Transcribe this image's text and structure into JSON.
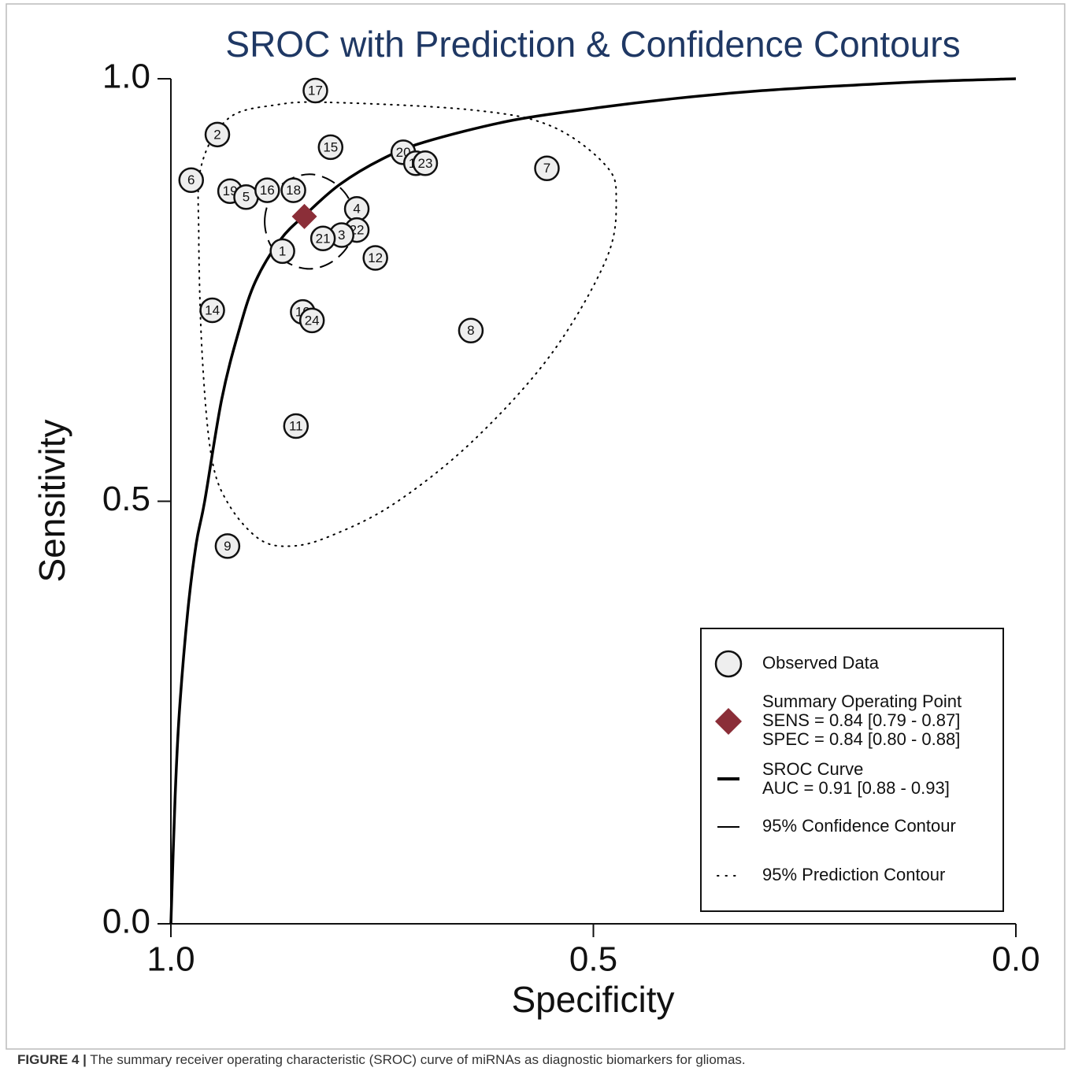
{
  "chart_data": {
    "type": "scatter",
    "title": "SROC with Prediction & Confidence Contours",
    "x_label": "Specificity",
    "y_label": "Sensitivity",
    "xlim": [
      1.0,
      0.0
    ],
    "ylim": [
      0.0,
      1.0
    ],
    "xticks": [
      {
        "value": 1.0,
        "label": "1.0"
      },
      {
        "value": 0.5,
        "label": "0.5"
      },
      {
        "value": 0.0,
        "label": "0.0"
      }
    ],
    "yticks": [
      {
        "value": 0.0,
        "label": "0.0"
      },
      {
        "value": 0.5,
        "label": "0.5"
      },
      {
        "value": 1.0,
        "label": "1.0"
      }
    ],
    "series": [
      {
        "name": "Observed Data",
        "kind": "points",
        "color": "#eeeeee",
        "labels": [
          "17",
          "2",
          "15",
          "20",
          "13",
          "23",
          "7",
          "6",
          "19",
          "5",
          "16",
          "18",
          "4",
          "22",
          "3",
          "21",
          "1",
          "12",
          "14",
          "10",
          "24",
          "8",
          "11",
          "9"
        ],
        "x": [
          0.829,
          0.945,
          0.811,
          0.725,
          0.71,
          0.699,
          0.555,
          0.976,
          0.93,
          0.911,
          0.886,
          0.855,
          0.78,
          0.78,
          0.798,
          0.82,
          0.868,
          0.758,
          0.951,
          0.844,
          0.833,
          0.645,
          0.852,
          0.933
        ],
        "y": [
          0.986,
          0.934,
          0.919,
          0.913,
          0.9,
          0.9,
          0.894,
          0.88,
          0.867,
          0.86,
          0.868,
          0.868,
          0.846,
          0.821,
          0.815,
          0.811,
          0.796,
          0.788,
          0.726,
          0.724,
          0.714,
          0.702,
          0.589,
          0.447
        ]
      },
      {
        "name": "Summary Operating Point",
        "stats": [
          "SENS = 0.84 [0.79 - 0.87]",
          "SPEC = 0.84 [0.80 - 0.88]"
        ],
        "kind": "diamond",
        "color": "#8b2e38",
        "x": [
          0.842
        ],
        "y": [
          0.837
        ]
      },
      {
        "name": "SROC Curve",
        "stats": [
          "AUC = 0.91 [0.88 - 0.93]"
        ],
        "kind": "curve",
        "color": "#000000",
        "x": [
          1.0,
          0.995,
          0.99,
          0.98,
          0.97,
          0.96,
          0.94,
          0.92,
          0.9,
          0.87,
          0.84,
          0.8,
          0.75,
          0.7,
          0.6,
          0.5,
          0.4,
          0.3,
          0.2,
          0.1,
          0.0
        ],
        "y": [
          0.0,
          0.15,
          0.25,
          0.37,
          0.45,
          0.5,
          0.62,
          0.7,
          0.76,
          0.81,
          0.84,
          0.875,
          0.905,
          0.925,
          0.95,
          0.965,
          0.977,
          0.986,
          0.992,
          0.997,
          1.0
        ]
      },
      {
        "name": "95% Confidence Contour",
        "kind": "dashed-contour",
        "color": "#000000",
        "x": [
          0.889,
          0.882,
          0.863,
          0.836,
          0.81,
          0.79,
          0.783,
          0.79,
          0.81,
          0.836,
          0.863,
          0.882
        ],
        "y": [
          0.831,
          0.859,
          0.879,
          0.887,
          0.879,
          0.859,
          0.831,
          0.803,
          0.783,
          0.775,
          0.783,
          0.803
        ]
      },
      {
        "name": "95% Prediction Contour",
        "kind": "dotted-contour",
        "color": "#000000",
        "x": [
          0.811,
          0.643,
          0.55,
          0.485,
          0.473,
          0.485,
          0.55,
          0.643,
          0.736,
          0.811,
          0.857,
          0.895,
          0.932,
          0.952,
          0.963,
          0.967,
          0.964,
          0.932,
          0.876
        ],
        "y": [
          0.972,
          0.963,
          0.944,
          0.897,
          0.856,
          0.786,
          0.674,
          0.571,
          0.497,
          0.459,
          0.447,
          0.455,
          0.497,
          0.553,
          0.674,
          0.814,
          0.897,
          0.953,
          0.969
        ]
      }
    ],
    "legend": "bottom right"
  },
  "caption": {
    "label": "FIGURE 4 |",
    "text": " The summary receiver operating characteristic (SROC) curve of miRNAs as diagnostic biomarkers for gliomas."
  }
}
